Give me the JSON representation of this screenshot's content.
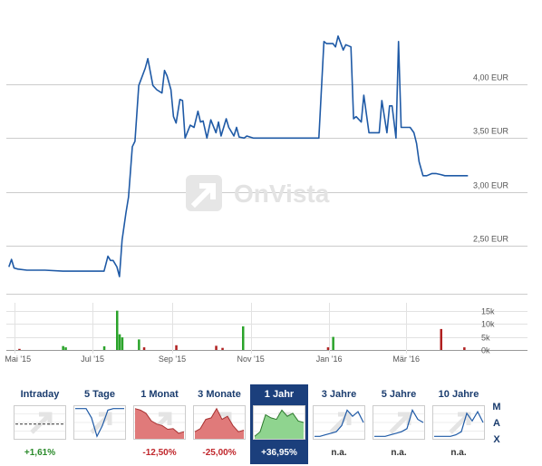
{
  "chart_data": {
    "type": "line",
    "price": {
      "x": [
        "2015-04-27",
        "2015-04-29",
        "2015-05-01",
        "2015-05-04",
        "2015-05-11",
        "2015-05-25",
        "2015-06-08",
        "2015-06-22",
        "2015-06-29",
        "2015-07-01",
        "2015-07-03",
        "2015-07-10",
        "2015-07-13",
        "2015-07-15",
        "2015-07-17",
        "2015-07-20",
        "2015-07-22",
        "2015-07-24",
        "2015-07-27",
        "2015-07-29",
        "2015-08-01",
        "2015-08-03",
        "2015-08-06",
        "2015-08-11",
        "2015-08-13",
        "2015-08-17",
        "2015-08-20",
        "2015-08-24",
        "2015-08-26",
        "2015-08-28",
        "2015-08-31",
        "2015-09-02",
        "2015-09-04",
        "2015-09-07",
        "2015-09-09",
        "2015-09-11",
        "2015-09-15",
        "2015-09-18",
        "2015-09-21",
        "2015-09-23",
        "2015-09-25",
        "2015-09-28",
        "2015-10-01",
        "2015-10-05",
        "2015-10-07",
        "2015-10-09",
        "2015-10-13",
        "2015-10-15",
        "2015-10-19",
        "2015-10-21",
        "2015-10-23",
        "2015-10-27",
        "2015-10-29",
        "2015-11-03",
        "2015-11-10",
        "2015-11-20",
        "2015-12-01",
        "2015-12-15",
        "2015-12-21",
        "2015-12-24",
        "2015-12-28",
        "2015-12-30",
        "2016-01-04",
        "2016-01-06",
        "2016-01-08",
        "2016-01-12",
        "2016-01-14",
        "2016-01-18",
        "2016-01-20",
        "2016-01-22",
        "2016-01-26",
        "2016-01-28",
        "2016-02-01",
        "2016-02-03",
        "2016-02-05",
        "2016-02-09",
        "2016-02-11",
        "2016-02-15",
        "2016-02-17",
        "2016-02-19",
        "2016-02-22",
        "2016-02-24",
        "2016-02-26",
        "2016-02-29",
        "2016-03-02",
        "2016-03-04",
        "2016-03-07",
        "2016-03-09",
        "2016-03-11",
        "2016-03-14",
        "2016-03-17",
        "2016-03-21",
        "2016-03-24",
        "2016-03-28",
        "2016-03-31",
        "2016-04-04",
        "2016-04-08",
        "2016-04-12",
        "2016-04-15",
        "2016-04-18"
      ],
      "y": [
        2.3,
        2.37,
        2.29,
        2.28,
        2.27,
        2.27,
        2.26,
        2.26,
        2.26,
        2.26,
        2.26,
        2.26,
        2.4,
        2.36,
        2.36,
        2.3,
        2.21,
        2.55,
        2.8,
        2.95,
        3.42,
        3.47,
        3.99,
        4.15,
        4.24,
        3.99,
        3.95,
        3.92,
        4.13,
        4.08,
        3.95,
        3.7,
        3.64,
        3.86,
        3.85,
        3.5,
        3.62,
        3.6,
        3.75,
        3.65,
        3.66,
        3.5,
        3.67,
        3.55,
        3.65,
        3.52,
        3.68,
        3.6,
        3.52,
        3.6,
        3.51,
        3.5,
        3.52,
        3.5,
        3.5,
        3.5,
        3.5,
        3.5,
        3.5,
        3.5,
        4.4,
        4.38,
        4.38,
        4.35,
        4.45,
        4.32,
        4.37,
        4.35,
        3.68,
        3.7,
        3.65,
        3.9,
        3.55,
        3.55,
        3.55,
        3.55,
        3.85,
        3.55,
        3.8,
        3.8,
        3.5,
        4.4,
        3.6,
        3.6,
        3.6,
        3.6,
        3.55,
        3.45,
        3.28,
        3.15,
        3.15,
        3.17,
        3.17,
        3.16,
        3.15,
        3.15,
        3.15,
        3.15,
        3.15,
        3.15
      ]
    },
    "volume": {
      "x": [
        "2015-05-05",
        "2015-06-08",
        "2015-06-10",
        "2015-07-10",
        "2015-07-20",
        "2015-07-22",
        "2015-07-24",
        "2015-08-06",
        "2015-08-10",
        "2015-09-04",
        "2015-10-05",
        "2015-10-10",
        "2015-10-26",
        "2015-12-31",
        "2016-01-04",
        "2016-03-28",
        "2016-04-15"
      ],
      "y": [
        400,
        1500,
        1000,
        1400,
        15000,
        6000,
        4800,
        4000,
        1000,
        1800,
        1600,
        800,
        9000,
        1000,
        5000,
        8000,
        1000
      ]
    },
    "xticks": [
      "Mai '15",
      "Jul '15",
      "Sep '15",
      "Nov '15",
      "Jan '16",
      "Mär '16"
    ],
    "yticks": [
      "4,00 EUR",
      "3,50 EUR",
      "3,00 EUR",
      "2,50 EUR"
    ],
    "volume_ticks": [
      "15k",
      "10k",
      "5k",
      "0k"
    ],
    "ylim": [
      2.05,
      4.55
    ],
    "volume_ylim": [
      0,
      18000
    ],
    "grid": true,
    "watermark": "OnVista",
    "colors": {
      "line": "#1f5aa6",
      "grid": "#cccccc",
      "volume_up": "#2aa32a",
      "volume_down": "#b02020",
      "watermark": "#e3e3e3"
    }
  },
  "ranges": [
    {
      "label": "Intraday",
      "change": "+1,61%",
      "trend": "pos",
      "spark": [
        0.55,
        0.55,
        0.55,
        0.55,
        0.55,
        0.55,
        0.55,
        0.55,
        0.55,
        0.55
      ],
      "spark_style": "dashed"
    },
    {
      "label": "5 Tage",
      "change": "",
      "trend": "none",
      "spark": [
        0.05,
        0.05,
        0.05,
        0.35,
        0.95,
        0.6,
        0.1,
        0.05,
        0.05,
        0.05
      ],
      "spark_style": "line"
    },
    {
      "label": "1 Monat",
      "change": "-12,50%",
      "trend": "neg",
      "spark": [
        0.05,
        0.1,
        0.2,
        0.45,
        0.55,
        0.6,
        0.72,
        0.7,
        0.85,
        0.8
      ],
      "spark_style": "area-red"
    },
    {
      "label": "3 Monate",
      "change": "-25,00%",
      "trend": "neg",
      "spark": [
        0.8,
        0.7,
        0.4,
        0.35,
        0.05,
        0.4,
        0.3,
        0.6,
        0.8,
        0.75
      ],
      "spark_style": "area-red"
    },
    {
      "label": "1 Jahr",
      "change": "+36,95%",
      "trend": "pos",
      "spark": [
        0.95,
        0.8,
        0.25,
        0.35,
        0.4,
        0.1,
        0.3,
        0.2,
        0.45,
        0.5
      ],
      "spark_style": "area-green",
      "active": true
    },
    {
      "label": "3 Jahre",
      "change": "n.a.",
      "trend": "na",
      "spark": [
        0.95,
        0.95,
        0.9,
        0.85,
        0.8,
        0.6,
        0.1,
        0.3,
        0.15,
        0.5
      ],
      "spark_style": "line"
    },
    {
      "label": "5 Jahre",
      "change": "n.a.",
      "trend": "na",
      "spark": [
        0.95,
        0.95,
        0.95,
        0.9,
        0.85,
        0.8,
        0.7,
        0.1,
        0.4,
        0.5
      ],
      "spark_style": "line"
    },
    {
      "label": "10 Jahre",
      "change": "n.a.",
      "trend": "na",
      "spark": [
        0.95,
        0.95,
        0.95,
        0.95,
        0.9,
        0.8,
        0.2,
        0.45,
        0.15,
        0.5
      ],
      "spark_style": "line"
    }
  ],
  "max_letters": [
    "M",
    "A",
    "X"
  ]
}
